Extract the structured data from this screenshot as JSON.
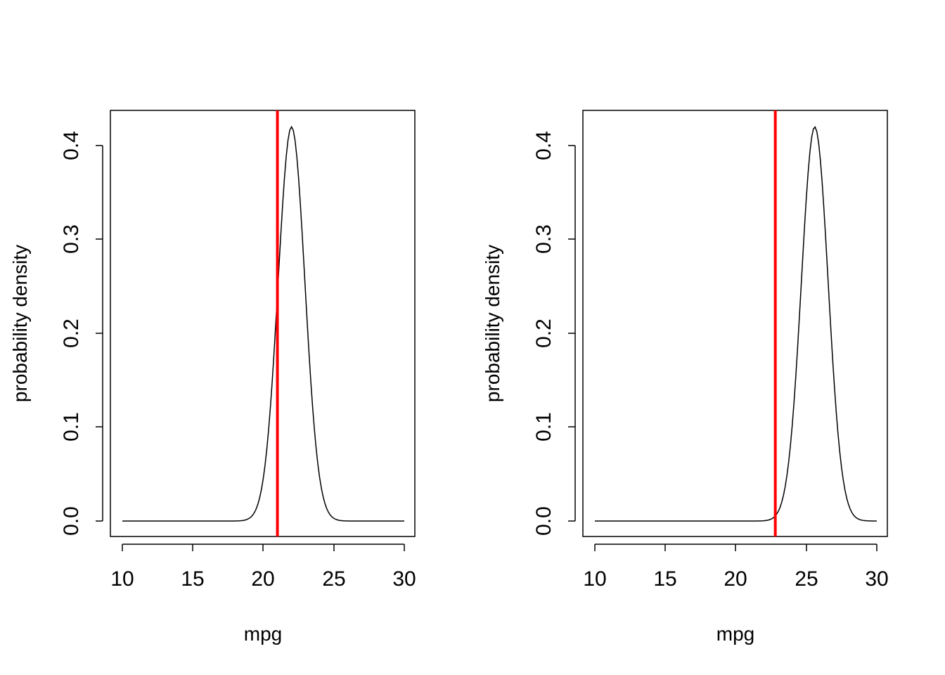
{
  "chart_data": [
    {
      "type": "line",
      "xlabel": "mpg",
      "ylabel": "probability density",
      "xlim": [
        10,
        30
      ],
      "ylim": [
        0,
        0.42
      ],
      "xticks": [
        "10",
        "15",
        "20",
        "25",
        "30"
      ],
      "yticks": [
        "0.0",
        "0.1",
        "0.2",
        "0.3",
        "0.4"
      ],
      "grid": false,
      "legend": "none",
      "series": [
        {
          "distribution": "normal",
          "mean": 22.0,
          "sd": 0.95,
          "x_range": [
            10,
            30
          ],
          "color": "#000000"
        }
      ],
      "vertical_line": {
        "x": 21.0,
        "color": "#ff0000"
      }
    },
    {
      "type": "line",
      "xlabel": "mpg",
      "ylabel": "probability density",
      "xlim": [
        10,
        30
      ],
      "ylim": [
        0,
        0.42
      ],
      "xticks": [
        "10",
        "15",
        "20",
        "25",
        "30"
      ],
      "yticks": [
        "0.0",
        "0.1",
        "0.2",
        "0.3",
        "0.4"
      ],
      "grid": false,
      "legend": "none",
      "series": [
        {
          "distribution": "normal",
          "mean": 25.6,
          "sd": 0.95,
          "x_range": [
            10,
            30
          ],
          "color": "#000000"
        }
      ],
      "vertical_line": {
        "x": 22.8,
        "color": "#ff0000"
      }
    }
  ]
}
